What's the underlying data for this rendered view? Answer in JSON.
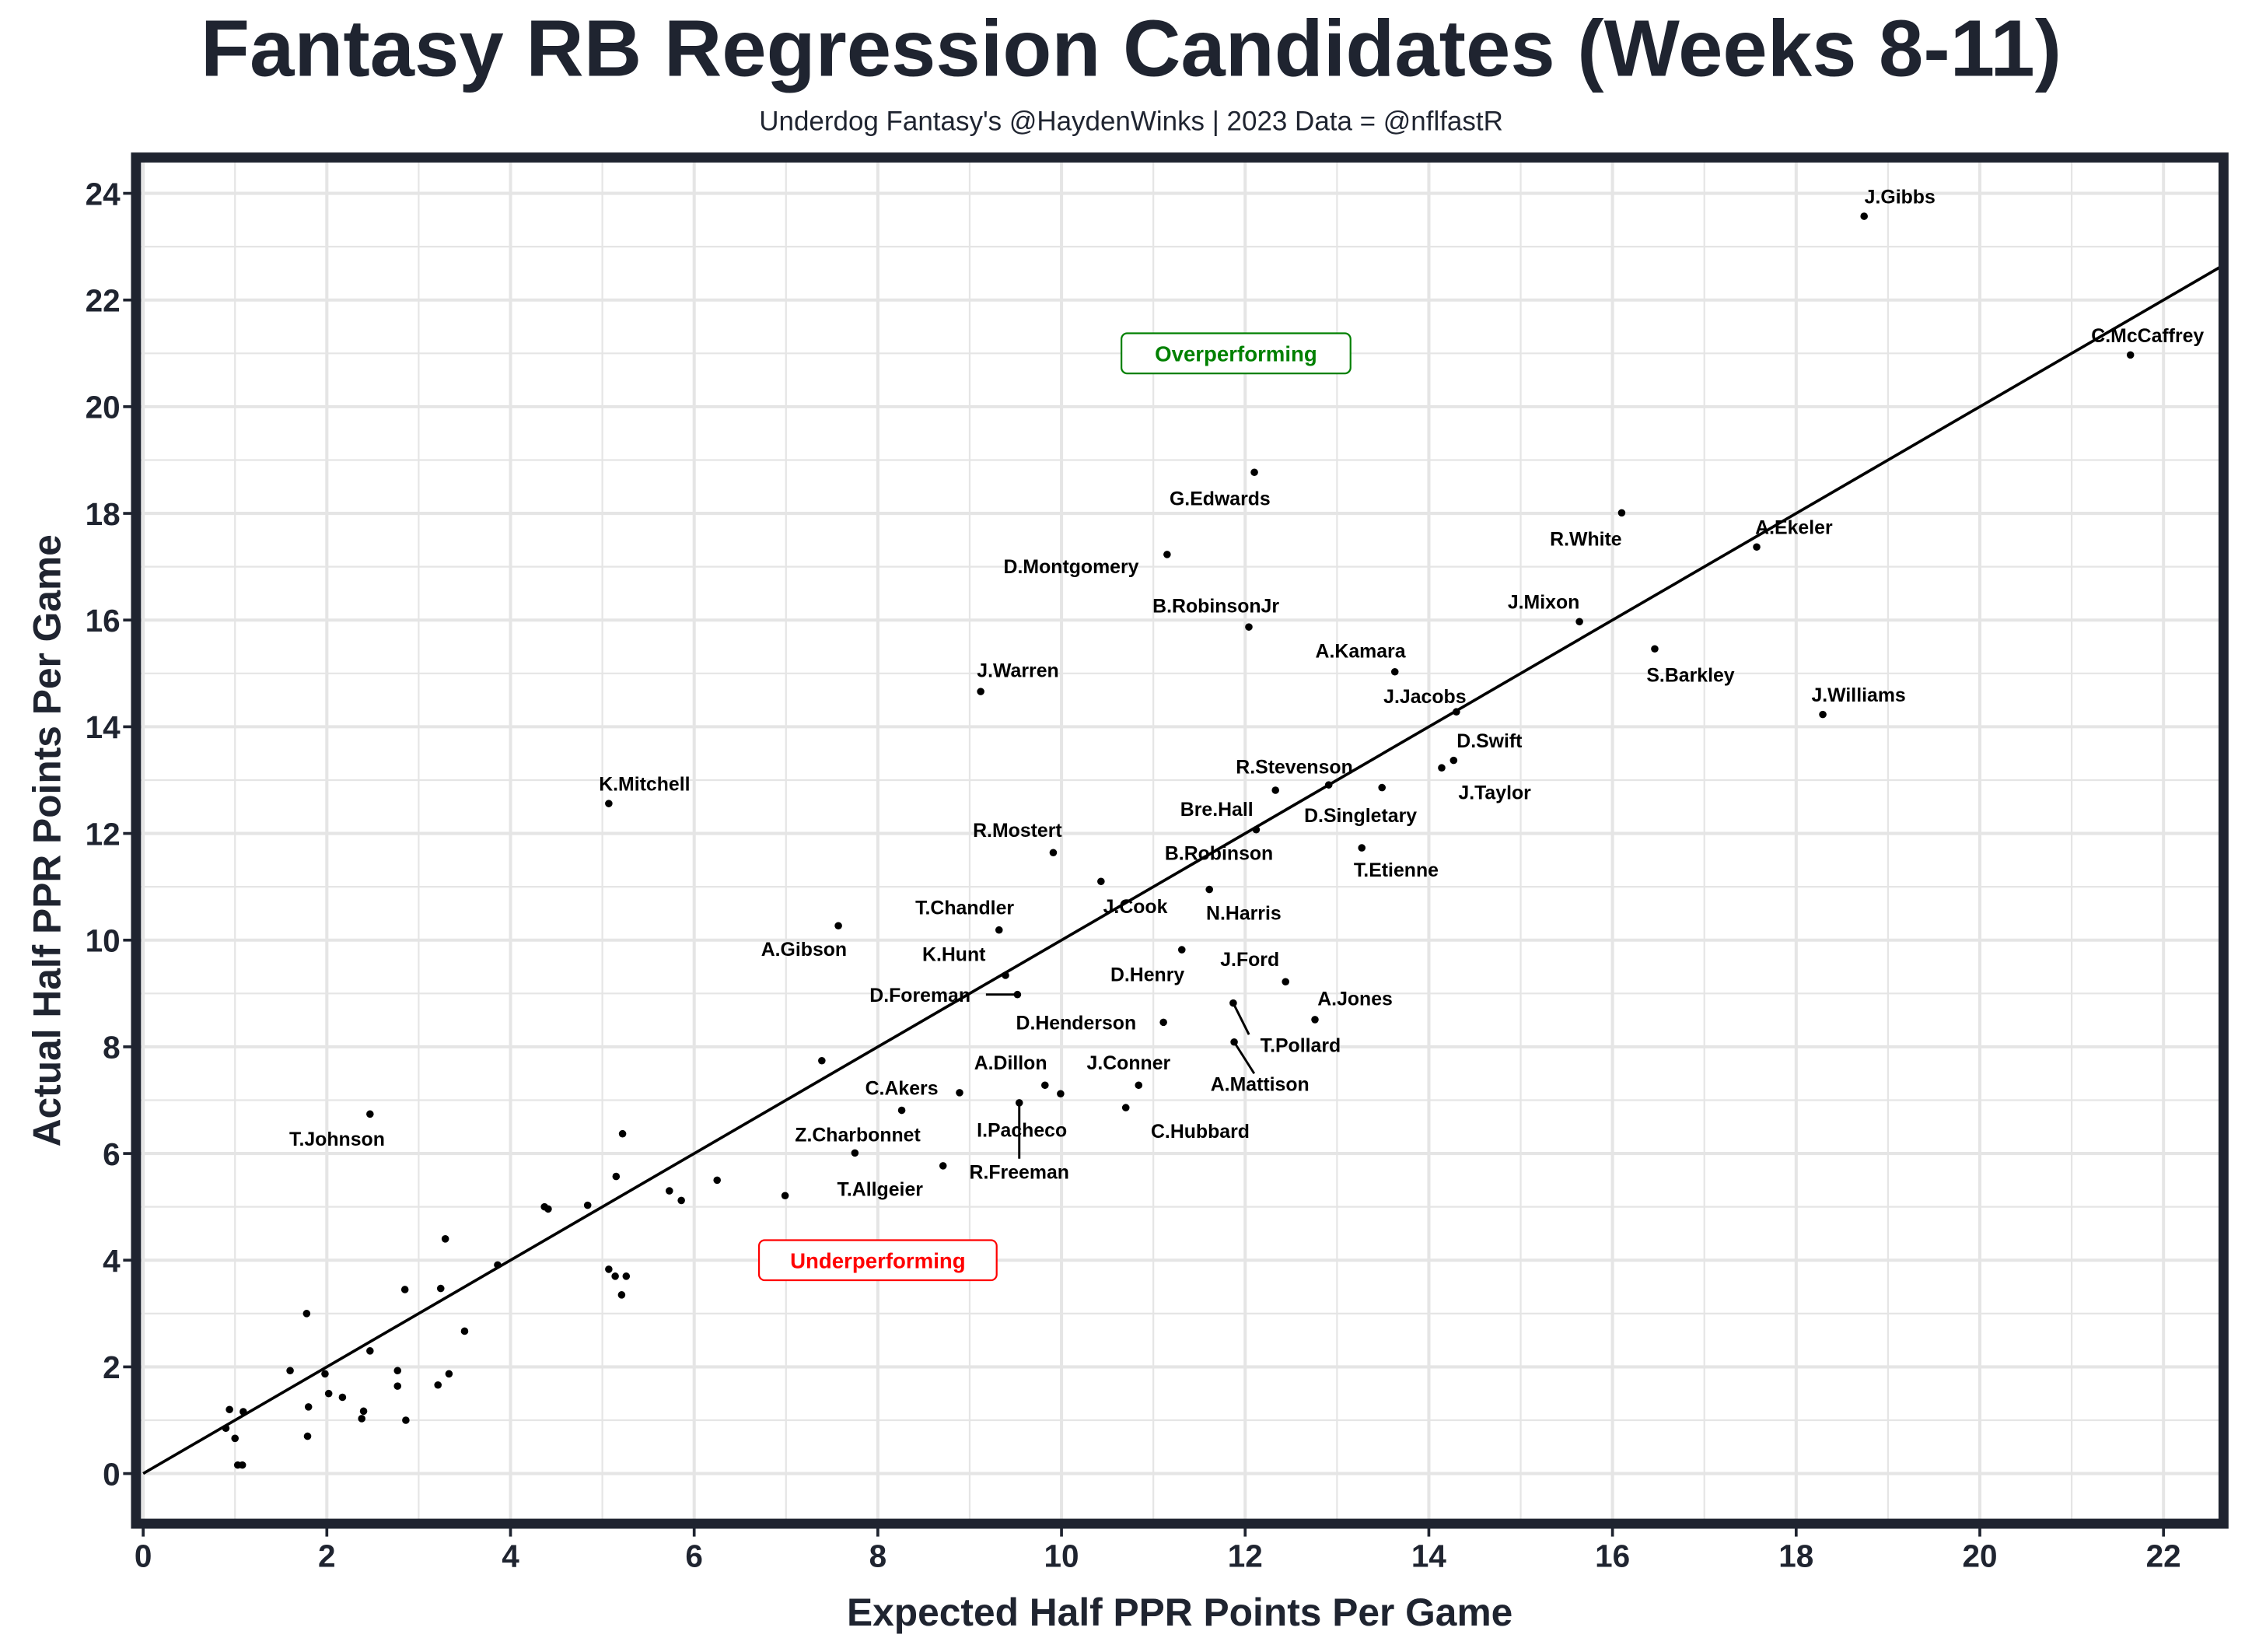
{
  "chart_data": {
    "type": "scatter",
    "title": "Fantasy RB Regression Candidates (Weeks 8-11)",
    "subtitle": "Underdog Fantasy's @HaydenWinks | 2023 Data = @nflfastR",
    "xlabel": "Expected Half PPR Points Per Game",
    "ylabel": "Actual Half PPR Points Per Game",
    "xlim": [
      -0.05,
      22.65
    ],
    "ylim": [
      -0.95,
      24.7
    ],
    "xticks": [
      "0",
      "2",
      "4",
      "6",
      "8",
      "10",
      "12",
      "14",
      "16",
      "18",
      "20",
      "22"
    ],
    "yticks": [
      "0",
      "2",
      "4",
      "6",
      "8",
      "10",
      "12",
      "14",
      "16",
      "18",
      "20",
      "22",
      "24"
    ],
    "grid": true,
    "reference_line": "y = x",
    "annotations": [
      {
        "text": "Overperforming",
        "x": 11.9,
        "y": 21.0,
        "color": "#008000"
      },
      {
        "text": "Underperforming",
        "x": 8.0,
        "y": 4.0,
        "color": "#ff0000"
      }
    ],
    "points": [
      {
        "name": "J.Gibbs",
        "x": 18.74,
        "y": 23.57
      },
      {
        "name": "C.McCaffrey",
        "x": 21.64,
        "y": 20.97
      },
      {
        "name": "G.Edwards",
        "x": 12.1,
        "y": 18.77
      },
      {
        "name": "D.Montgomery",
        "x": 11.15,
        "y": 17.23
      },
      {
        "name": "R.White",
        "x": 16.1,
        "y": 18.01
      },
      {
        "name": "A.Ekeler",
        "x": 17.57,
        "y": 17.37
      },
      {
        "name": "J.Mixon",
        "x": 15.64,
        "y": 15.97
      },
      {
        "name": "B.RobinsonJr",
        "x": 12.04,
        "y": 15.87
      },
      {
        "name": "A.Kamara",
        "x": 13.63,
        "y": 15.03
      },
      {
        "name": "S.Barkley",
        "x": 16.46,
        "y": 15.46
      },
      {
        "name": "J.Warren",
        "x": 9.12,
        "y": 14.66
      },
      {
        "name": "J.Williams",
        "x": 18.29,
        "y": 14.23
      },
      {
        "name": "J.Jacobs",
        "x": 14.3,
        "y": 14.28
      },
      {
        "name": "D.Swift",
        "x": 14.27,
        "y": 13.37
      },
      {
        "name": "J.Taylor",
        "x": 14.14,
        "y": 13.23
      },
      {
        "name": "K.Mitchell",
        "x": 5.07,
        "y": 12.56
      },
      {
        "name": "R.Stevenson",
        "x": 12.91,
        "y": 12.91
      },
      {
        "name": "D.Singletary",
        "x": 13.49,
        "y": 12.86
      },
      {
        "name": "Bre.Hall",
        "x": 12.33,
        "y": 12.81
      },
      {
        "name": "B.Robinson",
        "x": 12.12,
        "y": 12.07
      },
      {
        "name": "T.Etienne",
        "x": 13.27,
        "y": 11.73
      },
      {
        "name": "R.Mostert",
        "x": 9.91,
        "y": 11.64
      },
      {
        "name": "J.Cook",
        "x": 10.43,
        "y": 11.1
      },
      {
        "name": "N.Harris",
        "x": 11.61,
        "y": 10.95
      },
      {
        "name": "A.Gibson",
        "x": 7.57,
        "y": 10.27
      },
      {
        "name": "T.Chandler",
        "x": 9.32,
        "y": 10.19
      },
      {
        "name": "K.Hunt",
        "x": 9.39,
        "y": 9.34
      },
      {
        "name": "D.Foreman",
        "x": 9.52,
        "y": 8.98
      },
      {
        "name": "D.Henry",
        "x": 11.31,
        "y": 9.82
      },
      {
        "name": "J.Ford",
        "x": 12.44,
        "y": 9.22
      },
      {
        "name": "A.Jones",
        "x": 12.76,
        "y": 8.51
      },
      {
        "name": "D.Henderson",
        "x": 11.11,
        "y": 8.46
      },
      {
        "name": "T.Pollard",
        "x": 11.87,
        "y": 8.82
      },
      {
        "name": "A.Mattison",
        "x": 11.88,
        "y": 8.09
      },
      {
        "name": "A.Dillon",
        "x": 9.82,
        "y": 7.28
      },
      {
        "name": "J.Conner",
        "x": 10.84,
        "y": 7.28
      },
      {
        "name": "C.Akers",
        "x": 8.26,
        "y": 6.81
      },
      {
        "name": "I.Pacheco",
        "x": 9.99,
        "y": 7.12
      },
      {
        "name": "C.Hubbard",
        "x": 10.7,
        "y": 6.86
      },
      {
        "name": "R.Freeman",
        "x": 9.54,
        "y": 6.95
      },
      {
        "name": "Z.Charbonnet",
        "x": 7.75,
        "y": 6.01
      },
      {
        "name": "T.Allgeier",
        "x": 8.71,
        "y": 5.77
      },
      {
        "name": "T.Johnson",
        "x": 2.47,
        "y": 6.74
      },
      {
        "name": "",
        "x": 7.39,
        "y": 7.74
      },
      {
        "name": "",
        "x": 8.89,
        "y": 7.14
      },
      {
        "name": "",
        "x": 6.99,
        "y": 5.21
      },
      {
        "name": "",
        "x": 5.22,
        "y": 6.37
      },
      {
        "name": "",
        "x": 5.15,
        "y": 5.57
      },
      {
        "name": "",
        "x": 6.25,
        "y": 5.5
      },
      {
        "name": "",
        "x": 5.73,
        "y": 5.3
      },
      {
        "name": "",
        "x": 5.86,
        "y": 5.12
      },
      {
        "name": "",
        "x": 4.37,
        "y": 5.0
      },
      {
        "name": "",
        "x": 4.41,
        "y": 4.96
      },
      {
        "name": "",
        "x": 4.84,
        "y": 5.03
      },
      {
        "name": "",
        "x": 3.29,
        "y": 4.4
      },
      {
        "name": "",
        "x": 3.86,
        "y": 3.91
      },
      {
        "name": "",
        "x": 5.07,
        "y": 3.83
      },
      {
        "name": "",
        "x": 5.14,
        "y": 3.7
      },
      {
        "name": "",
        "x": 5.26,
        "y": 3.7
      },
      {
        "name": "",
        "x": 5.21,
        "y": 3.35
      },
      {
        "name": "",
        "x": 2.85,
        "y": 3.45
      },
      {
        "name": "",
        "x": 3.24,
        "y": 3.47
      },
      {
        "name": "",
        "x": 1.78,
        "y": 3.0
      },
      {
        "name": "",
        "x": 3.5,
        "y": 2.67
      },
      {
        "name": "",
        "x": 2.47,
        "y": 2.3
      },
      {
        "name": "",
        "x": 1.6,
        "y": 1.93
      },
      {
        "name": "",
        "x": 1.98,
        "y": 1.87
      },
      {
        "name": "",
        "x": 2.77,
        "y": 1.93
      },
      {
        "name": "",
        "x": 2.77,
        "y": 1.64
      },
      {
        "name": "",
        "x": 3.21,
        "y": 1.66
      },
      {
        "name": "",
        "x": 3.33,
        "y": 1.87
      },
      {
        "name": "",
        "x": 2.02,
        "y": 1.5
      },
      {
        "name": "",
        "x": 2.17,
        "y": 1.43
      },
      {
        "name": "",
        "x": 1.8,
        "y": 1.25
      },
      {
        "name": "",
        "x": 2.4,
        "y": 1.17
      },
      {
        "name": "",
        "x": 2.38,
        "y": 1.03
      },
      {
        "name": "",
        "x": 2.86,
        "y": 1.0
      },
      {
        "name": "",
        "x": 0.94,
        "y": 1.2
      },
      {
        "name": "",
        "x": 1.09,
        "y": 1.16
      },
      {
        "name": "",
        "x": 0.9,
        "y": 0.85
      },
      {
        "name": "",
        "x": 1.0,
        "y": 0.66
      },
      {
        "name": "",
        "x": 1.79,
        "y": 0.7
      },
      {
        "name": "",
        "x": 1.03,
        "y": 0.16
      },
      {
        "name": "",
        "x": 1.08,
        "y": 0.16
      }
    ]
  }
}
